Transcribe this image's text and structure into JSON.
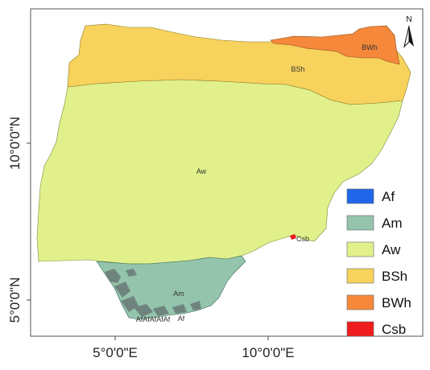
{
  "map": {
    "x_tick_labels": [
      "5°0'0\"E",
      "10°0'0\"E"
    ],
    "y_tick_labels": [
      "10°0'0\"N",
      "5°0'0\"N"
    ],
    "north_label": "N",
    "region_labels": {
      "bwh": "BWh",
      "bsh": "BSh",
      "aw": "Aw",
      "csb": "Csb",
      "am": "Am",
      "af": "Af",
      "af_cluster": "AfAfAfAfAf"
    }
  },
  "legend": {
    "items": [
      {
        "label": "Af",
        "color": "#1f66e8"
      },
      {
        "label": "Am",
        "color": "#94c4ac"
      },
      {
        "label": "Aw",
        "color": "#e2f08c"
      },
      {
        "label": "BSh",
        "color": "#f7d25c"
      },
      {
        "label": "BWh",
        "color": "#f5883a"
      },
      {
        "label": "Csb",
        "color": "#ee1c1c"
      }
    ]
  }
}
